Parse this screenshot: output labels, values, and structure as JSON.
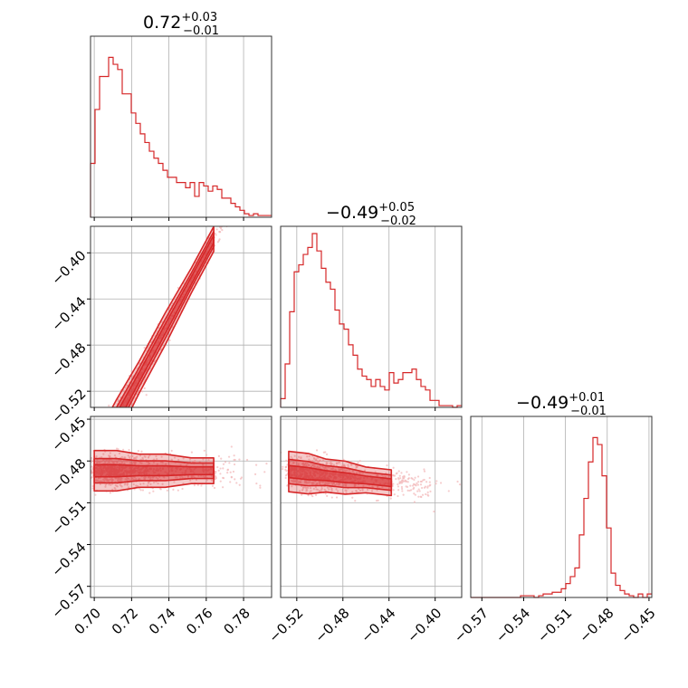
{
  "chart_data": {
    "type": "corner",
    "color": "#d62728",
    "fill_color": "#f4a6a7",
    "scatter_color": "#f2b6b8",
    "grid": true,
    "parameters": [
      {
        "key": "p0",
        "title": "0.72",
        "err_plus": "+0.03",
        "err_minus": "−0.01",
        "range": [
          0.698,
          0.795
        ],
        "ticks": [
          0.7,
          0.72,
          0.74,
          0.76,
          0.78
        ],
        "tick_labels": [
          "0.70",
          "0.72",
          "0.74",
          "0.76",
          "0.78"
        ]
      },
      {
        "key": "p1",
        "title": "−0.49",
        "err_plus": "+0.05",
        "err_minus": "−0.02",
        "range": [
          -0.534,
          -0.377
        ],
        "ticks": [
          -0.52,
          -0.48,
          -0.44,
          -0.4
        ],
        "tick_labels": [
          "−0.52",
          "−0.48",
          "−0.44",
          "−0.40"
        ]
      },
      {
        "key": "p2",
        "title": "−0.49",
        "err_plus": "+0.01",
        "err_minus": "−0.01",
        "range": [
          -0.578,
          -0.448
        ],
        "ticks": [
          -0.57,
          -0.54,
          -0.51,
          -0.48,
          -0.45
        ],
        "tick_labels": [
          "−0.57",
          "−0.54",
          "−0.51",
          "−0.48",
          "−0.45"
        ]
      }
    ],
    "histograms": [
      {
        "param": "p0",
        "values": [
          0.31,
          0.62,
          0.81,
          0.81,
          0.92,
          0.88,
          0.85,
          0.71,
          0.71,
          0.6,
          0.54,
          0.48,
          0.43,
          0.38,
          0.34,
          0.31,
          0.27,
          0.23,
          0.23,
          0.2,
          0.2,
          0.17,
          0.2,
          0.12,
          0.2,
          0.18,
          0.15,
          0.18,
          0.16,
          0.11,
          0.11,
          0.08,
          0.06,
          0.04,
          0.02,
          0.01,
          0.02,
          0.01,
          0.01,
          0.01
        ]
      },
      {
        "param": "p1",
        "values": [
          0.05,
          0.25,
          0.55,
          0.78,
          0.82,
          0.88,
          0.92,
          1.0,
          0.9,
          0.8,
          0.72,
          0.68,
          0.56,
          0.48,
          0.45,
          0.36,
          0.3,
          0.22,
          0.18,
          0.16,
          0.12,
          0.16,
          0.12,
          0.1,
          0.2,
          0.14,
          0.16,
          0.2,
          0.2,
          0.22,
          0.16,
          0.12,
          0.1,
          0.04,
          0.04,
          0.01,
          0.01,
          0.01,
          0.0,
          0.01
        ]
      },
      {
        "param": "p2",
        "values": [
          0.0,
          0.0,
          0.0,
          0.0,
          0.0,
          0.0,
          0.0,
          0.0,
          0.0,
          0.0,
          0.0,
          0.01,
          0.01,
          0.01,
          0.0,
          0.01,
          0.02,
          0.02,
          0.03,
          0.03,
          0.05,
          0.08,
          0.12,
          0.17,
          0.36,
          0.57,
          0.78,
          0.92,
          0.88,
          0.7,
          0.4,
          0.14,
          0.07,
          0.04,
          0.02,
          0.01,
          0.0,
          0.02,
          0.0,
          0.02
        ]
      }
    ],
    "joint": [
      {
        "x": "p0",
        "y": "p1",
        "relation": "linear",
        "slope": 3.0,
        "intercept": -2.68,
        "spread": 0.007
      },
      {
        "x": "p0",
        "y": "p2",
        "relation": "flat",
        "level": -0.487,
        "spread": 0.006
      },
      {
        "x": "p1",
        "y": "p2",
        "relation": "linear",
        "slope": -0.09,
        "intercept": -0.535,
        "spread": 0.006
      }
    ]
  }
}
